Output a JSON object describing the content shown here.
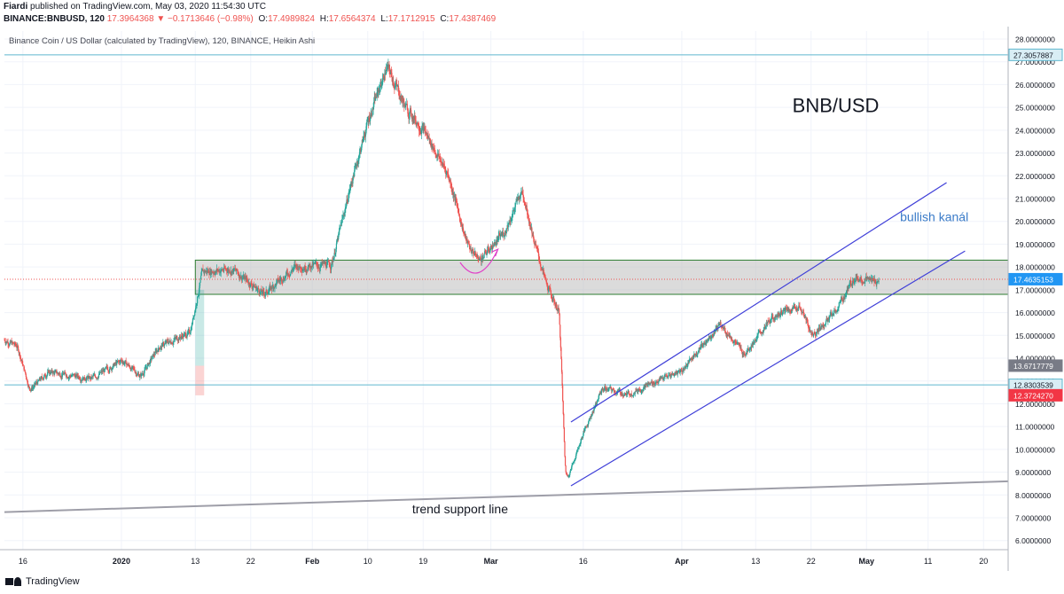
{
  "header": {
    "author": "Fiardi",
    "published": "published on TradingView.com, May 03, 2020 11:54:30 UTC",
    "symbol": "BINANCE:BNBUSD, 120",
    "last": "17.3964368",
    "change_arrow": "▼",
    "change": "−0.1713646 (−0.98%)",
    "o_label": "O:",
    "o": "17.4989824",
    "h_label": "H:",
    "h": "17.6564374",
    "l_label": "L:",
    "l": "17.1712915",
    "c_label": "C:",
    "c": "17.4387469"
  },
  "footer": {
    "brand": "TradingView"
  },
  "colors": {
    "up": "#26a69a",
    "down": "#ef5350",
    "zone_fill": "#bdbdbd",
    "zone_border": "#2e7d32",
    "channel": "#3f3fd8",
    "trend": "#9e9ea8",
    "horizontal": "#5fb8cf",
    "arc": "#e040c8",
    "label_blue": "#3a7bc8",
    "price_tag": "#2196f3",
    "grey_tag": "#787b86",
    "red_tag": "#f23645"
  },
  "chart_data": {
    "type": "candlestick",
    "title": "Binance Coin / US Dollar (calculated by TradingView), 120, BINANCE, Heikin Ashi",
    "y_axis": {
      "range": [
        5.6,
        28.35
      ],
      "ticks": [
        "6.0000000",
        "7.0000000",
        "8.0000000",
        "9.0000000",
        "10.0000000",
        "11.0000000",
        "12.0000000",
        "13.0000000",
        "14.0000000",
        "15.0000000",
        "16.0000000",
        "17.0000000",
        "18.0000000",
        "19.0000000",
        "20.0000000",
        "21.0000000",
        "22.0000000",
        "23.0000000",
        "24.0000000",
        "25.0000000",
        "26.0000000",
        "27.0000000",
        "28.0000000"
      ]
    },
    "x_axis": {
      "range": [
        "2019-12-13",
        "2020-05-24"
      ],
      "ticks": [
        {
          "label": "16",
          "date": "2019-12-16"
        },
        {
          "label": "2020",
          "date": "2020-01-01"
        },
        {
          "label": "13",
          "date": "2020-01-13"
        },
        {
          "label": "22",
          "date": "2020-01-22"
        },
        {
          "label": "Feb",
          "date": "2020-02-01"
        },
        {
          "label": "10",
          "date": "2020-02-10"
        },
        {
          "label": "19",
          "date": "2020-02-19"
        },
        {
          "label": "Mar",
          "date": "2020-03-01"
        },
        {
          "label": "16",
          "date": "2020-03-16"
        },
        {
          "label": "Apr",
          "date": "2020-04-01"
        },
        {
          "label": "13",
          "date": "2020-04-13"
        },
        {
          "label": "22",
          "date": "2020-04-22"
        },
        {
          "label": "May",
          "date": "2020-05-01"
        },
        {
          "label": "11",
          "date": "2020-05-11"
        },
        {
          "label": "20",
          "date": "2020-05-20"
        }
      ]
    },
    "price_path": [
      {
        "date": "2019-12-13",
        "price": 14.8
      },
      {
        "date": "2019-12-15",
        "price": 14.5
      },
      {
        "date": "2019-12-17",
        "price": 12.6
      },
      {
        "date": "2019-12-20",
        "price": 13.4
      },
      {
        "date": "2019-12-27",
        "price": 13.1
      },
      {
        "date": "2020-01-01",
        "price": 13.9
      },
      {
        "date": "2020-01-04",
        "price": 13.2
      },
      {
        "date": "2020-01-07",
        "price": 14.5
      },
      {
        "date": "2020-01-10",
        "price": 14.9
      },
      {
        "date": "2020-01-12",
        "price": 15.1
      },
      {
        "date": "2020-01-14",
        "price": 17.8
      },
      {
        "date": "2020-01-19",
        "price": 17.9
      },
      {
        "date": "2020-01-24",
        "price": 16.8
      },
      {
        "date": "2020-01-29",
        "price": 18.0
      },
      {
        "date": "2020-02-04",
        "price": 18.1
      },
      {
        "date": "2020-02-07",
        "price": 21.5
      },
      {
        "date": "2020-02-10",
        "price": 24.5
      },
      {
        "date": "2020-02-13",
        "price": 26.8
      },
      {
        "date": "2020-02-16",
        "price": 25.0
      },
      {
        "date": "2020-02-19",
        "price": 24.0
      },
      {
        "date": "2020-02-23",
        "price": 22.0
      },
      {
        "date": "2020-02-26",
        "price": 19.0
      },
      {
        "date": "2020-02-28",
        "price": 18.3
      },
      {
        "date": "2020-03-03",
        "price": 19.5
      },
      {
        "date": "2020-03-06",
        "price": 21.4
      },
      {
        "date": "2020-03-08",
        "price": 19.0
      },
      {
        "date": "2020-03-10",
        "price": 17.1
      },
      {
        "date": "2020-03-12",
        "price": 16.0
      },
      {
        "date": "2020-03-13",
        "price": 8.5
      },
      {
        "date": "2020-03-16",
        "price": 10.8
      },
      {
        "date": "2020-03-19",
        "price": 12.7
      },
      {
        "date": "2020-03-23",
        "price": 12.4
      },
      {
        "date": "2020-03-27",
        "price": 12.9
      },
      {
        "date": "2020-04-01",
        "price": 13.5
      },
      {
        "date": "2020-04-07",
        "price": 15.5
      },
      {
        "date": "2020-04-11",
        "price": 14.2
      },
      {
        "date": "2020-04-16",
        "price": 15.9
      },
      {
        "date": "2020-04-20",
        "price": 16.3
      },
      {
        "date": "2020-04-22",
        "price": 15.0
      },
      {
        "date": "2020-04-26",
        "price": 16.1
      },
      {
        "date": "2020-04-29",
        "price": 17.6
      },
      {
        "date": "2020-05-01",
        "price": 17.4
      },
      {
        "date": "2020-05-03",
        "price": 17.4
      }
    ],
    "drawings": {
      "resistance_line": 27.3057887,
      "support_line": 12.8303539,
      "zone": {
        "from": "2020-01-13",
        "to": "2020-05-24",
        "low": 16.8,
        "high": 18.3
      },
      "current_price_line": 17.4635153,
      "channel_upper": {
        "from": {
          "date": "2020-03-14",
          "price": 11.2
        },
        "to": {
          "date": "2020-05-14",
          "price": 21.7
        }
      },
      "channel_lower": {
        "from": {
          "date": "2020-03-14",
          "price": 8.4
        },
        "to": {
          "date": "2020-05-17",
          "price": 18.7
        }
      },
      "trend_support_line": {
        "from": {
          "date": "2019-12-13",
          "price": 7.25
        },
        "to": {
          "date": "2020-05-24",
          "price": 8.6
        }
      },
      "arc": {
        "from": {
          "date": "2020-02-25",
          "price": 18.2
        },
        "mid": {
          "date": "2020-02-28",
          "price": 17.6
        },
        "to": {
          "date": "2020-03-02",
          "price": 18.7
        }
      },
      "long_position_box": {
        "from": "2020-01-13",
        "to": "2020-01-14",
        "target": 17.0,
        "entry": 13.67,
        "stop": 12.37
      }
    },
    "annotations": [
      {
        "text": "BNB/USD",
        "date": "2020-04-26",
        "price": 24.8
      },
      {
        "text": "bullish kanál",
        "date": "2020-05-12",
        "price": 20.0
      },
      {
        "text": "trend support line",
        "date": "2020-02-25",
        "price": 7.2
      }
    ],
    "price_tags": [
      {
        "value": "27.3057887",
        "price": 27.3057887,
        "style": "line"
      },
      {
        "value": "17.4635153",
        "price": 17.4635153,
        "style": "current"
      },
      {
        "value": "13.6717779",
        "price": 13.6717779,
        "style": "grey"
      },
      {
        "value": "12.8303539",
        "price": 12.8303539,
        "style": "line"
      },
      {
        "value": "12.3724270",
        "price": 12.372427,
        "style": "red"
      }
    ]
  }
}
